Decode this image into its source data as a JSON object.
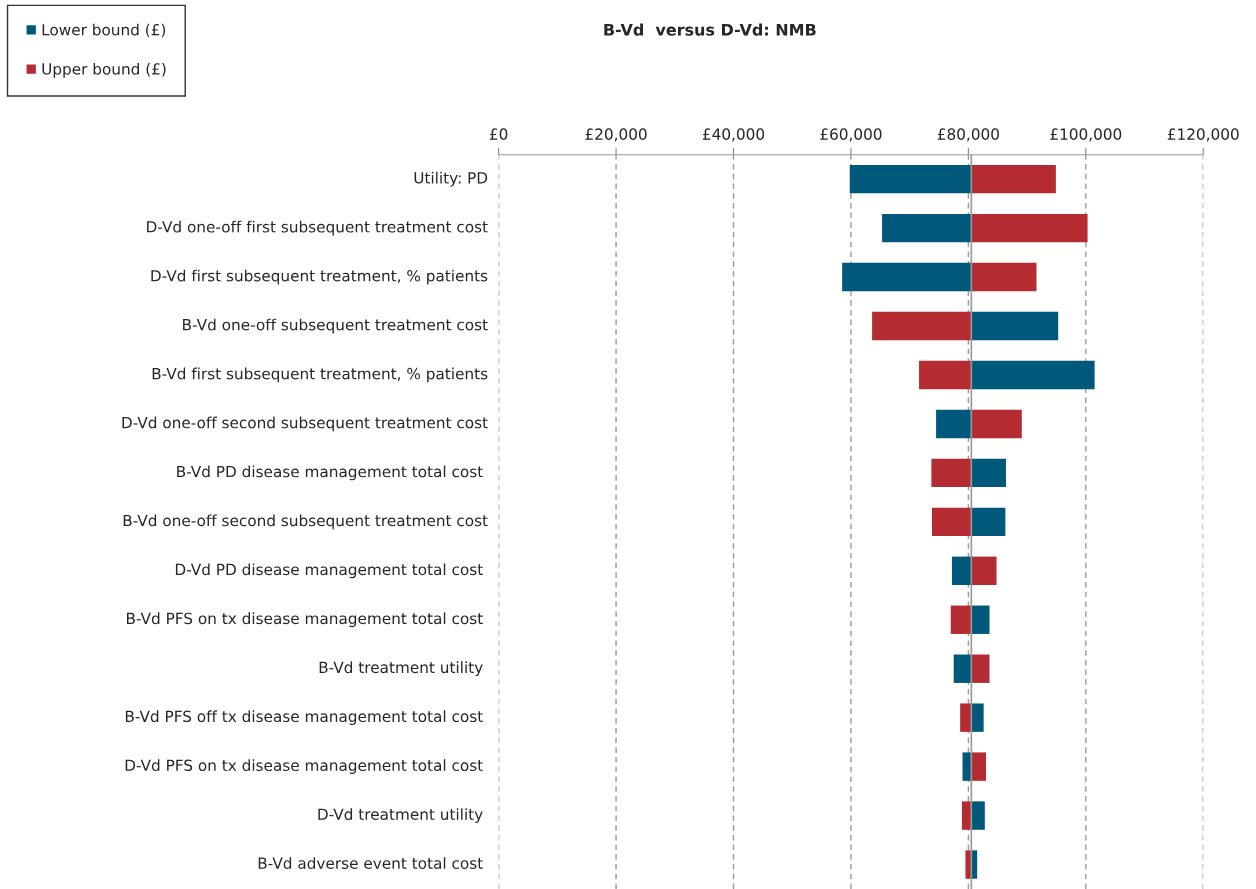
{
  "chart_data": {
    "type": "bar",
    "orientation": "horizontal",
    "title": "B-Vd  versus D-Vd: NMB",
    "categories": [
      "Utility: PD",
      "D-Vd one-off first subsequent treatment cost",
      "D-Vd first subsequent treatment, % patients",
      "B-Vd one-off subsequent treatment cost",
      "B-Vd first subsequent treatment, % patients",
      "D-Vd one-off second subsequent treatment cost",
      "B-Vd PD disease management total cost ",
      "B-Vd one-off second subsequent treatment cost",
      "D-Vd PD disease management total cost ",
      "B-Vd PFS on tx disease management total cost ",
      "B-Vd treatment utility ",
      "B-Vd PFS off tx disease management total cost ",
      "D-Vd PFS on tx disease management total cost ",
      "D-Vd treatment utility ",
      "B-Vd adverse event total cost "
    ],
    "series": [
      {
        "name": "Lower bound (£)",
        "color": "#00587a",
        "base": [
          80500,
          80500,
          80500,
          80500,
          80500,
          80500,
          80500,
          80500,
          80500,
          80500,
          80500,
          80500,
          80500,
          80500,
          80500
        ],
        "values": [
          -20700,
          -15200,
          -22000,
          14800,
          21000,
          -6000,
          5900,
          5800,
          -3300,
          3100,
          -3000,
          2100,
          -1500,
          2300,
          1000
        ]
      },
      {
        "name": "Upper bound (£)",
        "color": "#b52b32",
        "base": [
          80500,
          80500,
          80500,
          80500,
          80500,
          80500,
          80500,
          80500,
          80500,
          80500,
          80500,
          80500,
          80500,
          80500,
          80500
        ],
        "values": [
          14400,
          19800,
          11100,
          -16900,
          -8900,
          8600,
          -6800,
          -6700,
          4300,
          -3500,
          3100,
          -1900,
          2500,
          -1600,
          -1000
        ]
      }
    ],
    "xlim": [
      0,
      120000
    ],
    "xticks": [
      {
        "value": 0,
        "label": "£0"
      },
      {
        "value": 20000,
        "label": "£20,000"
      },
      {
        "value": 40000,
        "label": "£40,000"
      },
      {
        "value": 60000,
        "label": "£60,000"
      },
      {
        "value": 80000,
        "label": "£80,000"
      },
      {
        "value": 100000,
        "label": "£100,000"
      },
      {
        "value": 120000,
        "label": "£120,000"
      }
    ],
    "ref_lines": [
      {
        "axis": "x",
        "value": 80500,
        "color": "#999999"
      }
    ],
    "grid": "x",
    "legend": "top left"
  }
}
